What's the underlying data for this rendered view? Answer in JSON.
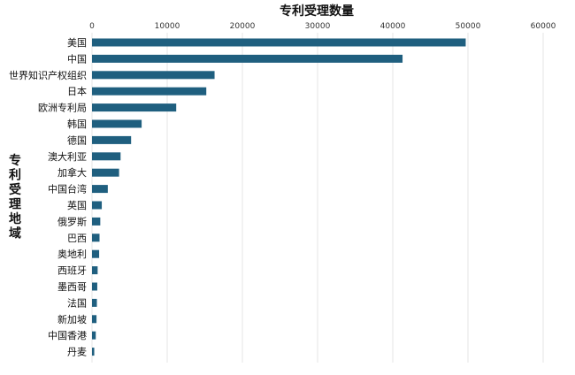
{
  "chart_data": {
    "type": "bar",
    "orientation": "horizontal",
    "title": "专利受理数量",
    "ylabel": "专利受理地域",
    "xlabel": "",
    "xlim": [
      0,
      60000
    ],
    "xticks": [
      "0",
      "10000",
      "20000",
      "30000",
      "40000",
      "50000",
      "60000"
    ],
    "xaxis_position": "top",
    "grid": true,
    "bar_color": "#1f5f7f",
    "categories": [
      "美国",
      "中国",
      "世界知识产权组织",
      "日本",
      "欧洲专利局",
      "韩国",
      "德国",
      "澳大利亚",
      "加拿大",
      "中国台湾",
      "英国",
      "俄罗斯",
      "巴西",
      "奥地利",
      "西班牙",
      "墨西哥",
      "法国",
      "新加坡",
      "中国香港",
      "丹麦"
    ],
    "values": [
      49700,
      41300,
      16300,
      15200,
      11200,
      6600,
      5200,
      3800,
      3600,
      2100,
      1300,
      1100,
      1000,
      950,
      750,
      700,
      650,
      600,
      500,
      300
    ]
  }
}
